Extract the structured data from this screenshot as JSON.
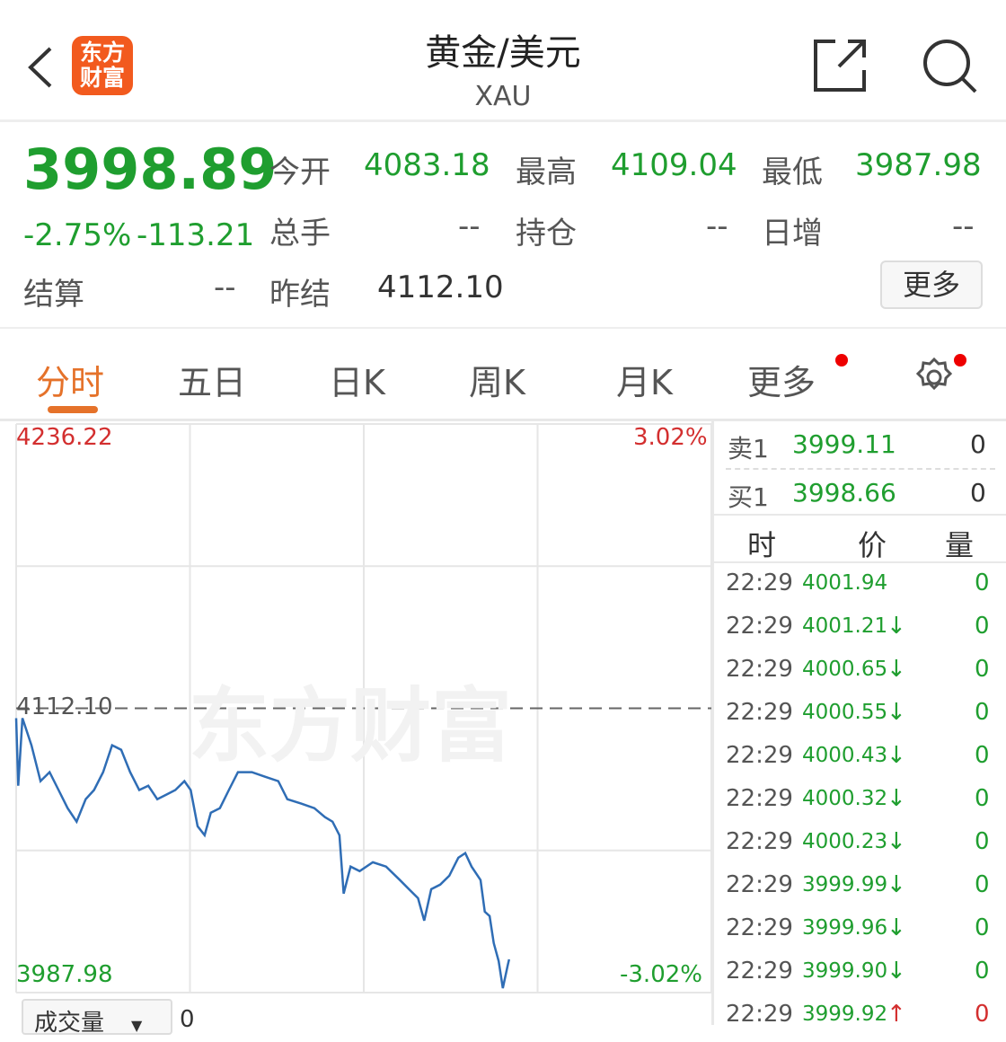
{
  "header": {
    "title": "黄金/美元",
    "subtitle": "XAU",
    "logo_text": [
      "东方",
      "财富"
    ],
    "icons": [
      "back-chevron-icon",
      "share-icon",
      "search-icon"
    ]
  },
  "quote": {
    "price": "3998.89",
    "change_pct": "-2.75%",
    "change": "-113.21",
    "fields": [
      {
        "label": "今开",
        "value": "4083.18"
      },
      {
        "label": "最高",
        "value": "4109.04"
      },
      {
        "label": "最低",
        "value": "3987.98"
      },
      {
        "label": "总手",
        "value": "--"
      },
      {
        "label": "持仓",
        "value": "--"
      },
      {
        "label": "日增",
        "value": "--"
      },
      {
        "label": "结算",
        "value": "--"
      },
      {
        "label": "昨结",
        "value": "4112.10"
      }
    ],
    "more_button": "更多"
  },
  "tabs": [
    {
      "label": "分时",
      "active": true
    },
    {
      "label": "五日"
    },
    {
      "label": "日K"
    },
    {
      "label": "周K"
    },
    {
      "label": "月K"
    },
    {
      "label": "更多"
    }
  ],
  "colors": {
    "up": "#d32f2f",
    "down": "#1f9e2f",
    "accent": "#e5722a",
    "line": "#2f6db5",
    "logo": "#f25a1e"
  },
  "chart_data": {
    "type": "line",
    "y_max_label": "4236.22",
    "y_min_label": "3987.98",
    "ref_label": "4112.10",
    "pct_max_label": "3.02%",
    "pct_min_label": "-3.02%",
    "ylim": [
      3987.98,
      4236.22
    ],
    "reference": 4112.1,
    "grid": true,
    "watermark": "东方财富",
    "x_unit": "percent of session",
    "series": [
      [
        0,
        4107.8
      ],
      [
        0.3,
        4078.3
      ],
      [
        0.9,
        4107.8
      ],
      [
        2.2,
        4096.0
      ],
      [
        3.5,
        4080.3
      ],
      [
        4.8,
        4084.2
      ],
      [
        6.1,
        4076.4
      ],
      [
        7.4,
        4068.5
      ],
      [
        8.7,
        4062.6
      ],
      [
        10,
        4072.4
      ],
      [
        11.2,
        4076.4
      ],
      [
        12.5,
        4084.2
      ],
      [
        13.8,
        4096.0
      ],
      [
        15.1,
        4094.0
      ],
      [
        16.4,
        4084.2
      ],
      [
        17.7,
        4076.4
      ],
      [
        19,
        4078.3
      ],
      [
        20.3,
        4072.4
      ],
      [
        21.6,
        4074.4
      ],
      [
        22.9,
        4076.4
      ],
      [
        24.2,
        4080.3
      ],
      [
        25.1,
        4076.4
      ],
      [
        26.1,
        4060.6
      ],
      [
        27.1,
        4056.7
      ],
      [
        28,
        4066.5
      ],
      [
        29.3,
        4068.5
      ],
      [
        30.6,
        4076.4
      ],
      [
        31.9,
        4084.2
      ],
      [
        33.9,
        4084.2
      ],
      [
        35.8,
        4082.2
      ],
      [
        37.7,
        4080.3
      ],
      [
        39,
        4072.4
      ],
      [
        41,
        4070.5
      ],
      [
        42.9,
        4068.5
      ],
      [
        44.4,
        4064.6
      ],
      [
        45.5,
        4062.6
      ],
      [
        46.5,
        4056.7
      ],
      [
        47.1,
        4031.2
      ],
      [
        48.1,
        4043.0
      ],
      [
        49.4,
        4041.0
      ],
      [
        51.3,
        4044.9
      ],
      [
        53.2,
        4043.0
      ],
      [
        55.2,
        4037.1
      ],
      [
        56.5,
        4033.1
      ],
      [
        57.8,
        4029.2
      ],
      [
        58.7,
        4019.4
      ],
      [
        59.7,
        4033.1
      ],
      [
        61,
        4035.1
      ],
      [
        62.3,
        4039.0
      ],
      [
        63.6,
        4046.9
      ],
      [
        64.6,
        4048.9
      ],
      [
        65.5,
        4043.0
      ],
      [
        66.8,
        4037.1
      ],
      [
        67.4,
        4023.3
      ],
      [
        68.1,
        4021.4
      ],
      [
        68.7,
        4009.6
      ],
      [
        69.4,
        4001.7
      ],
      [
        70,
        3989.9
      ],
      [
        70.7,
        3999.8
      ],
      [
        70.9,
        4002.5
      ]
    ]
  },
  "order_book": {
    "sell": {
      "label": "卖1",
      "price": "3999.11",
      "vol": "0"
    },
    "buy": {
      "label": "买1",
      "price": "3998.66",
      "vol": "0"
    },
    "headers": [
      "时",
      "价",
      "量"
    ],
    "trades": [
      {
        "time": "22:29",
        "price": "4001.94",
        "dir": "",
        "vol": "0"
      },
      {
        "time": "22:29",
        "price": "4001.21",
        "dir": "↓",
        "vol": "0"
      },
      {
        "time": "22:29",
        "price": "4000.65",
        "dir": "↓",
        "vol": "0"
      },
      {
        "time": "22:29",
        "price": "4000.55",
        "dir": "↓",
        "vol": "0"
      },
      {
        "time": "22:29",
        "price": "4000.43",
        "dir": "↓",
        "vol": "0"
      },
      {
        "time": "22:29",
        "price": "4000.32",
        "dir": "↓",
        "vol": "0"
      },
      {
        "time": "22:29",
        "price": "4000.23",
        "dir": "↓",
        "vol": "0"
      },
      {
        "time": "22:29",
        "price": "3999.99",
        "dir": "↓",
        "vol": "0"
      },
      {
        "time": "22:29",
        "price": "3999.96",
        "dir": "↓",
        "vol": "0"
      },
      {
        "time": "22:29",
        "price": "3999.90",
        "dir": "↓",
        "vol": "0"
      },
      {
        "time": "22:29",
        "price": "3999.92",
        "dir": "↑",
        "vol": "0"
      }
    ]
  },
  "volume": {
    "selector": "成交量",
    "value": "0"
  }
}
